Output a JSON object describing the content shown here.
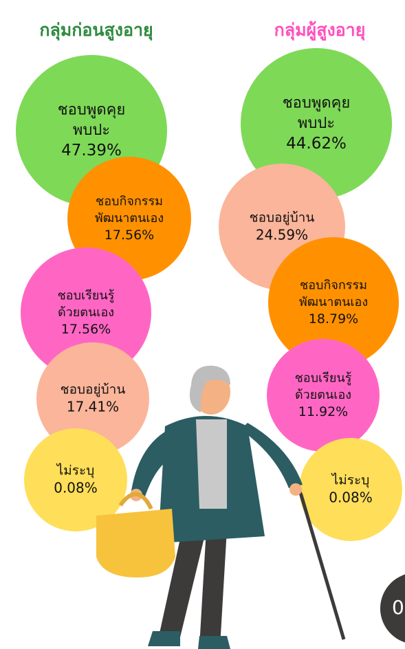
{
  "groups": [
    {
      "title": "กลุ่มก่อนสูงอายุ",
      "items": [
        {
          "label": [
            "ชอบพูดคุย",
            "พบปะ"
          ],
          "value": "47.39%"
        },
        {
          "label": [
            "ชอบกิจกรรม",
            "พัฒนาตนเอง"
          ],
          "value": "17.56%"
        },
        {
          "label": [
            "ชอบเรียนรู้",
            "ด้วยตนเอง"
          ],
          "value": "17.56%"
        },
        {
          "label": [
            "ชอบอยู่บ้าน"
          ],
          "value": "17.41%"
        },
        {
          "label": [
            "ไม่ระบุ"
          ],
          "value": "0.08%"
        }
      ]
    },
    {
      "title": "กลุ่มผู้สูงอายุ",
      "items": [
        {
          "label": [
            "ชอบพูดคุย",
            "พบปะ"
          ],
          "value": "44.62%"
        },
        {
          "label": [
            "ชอบอยู่บ้าน"
          ],
          "value": "24.59%"
        },
        {
          "label": [
            "ชอบกิจกรรม",
            "พัฒนาตนเอง"
          ],
          "value": "18.79%"
        },
        {
          "label": [
            "ชอบเรียนรู้",
            "ด้วยตนเอง"
          ],
          "value": "11.92%"
        },
        {
          "label": [
            "ไม่ระบุ"
          ],
          "value": "0.08%"
        }
      ]
    }
  ],
  "page_number": "0"
}
